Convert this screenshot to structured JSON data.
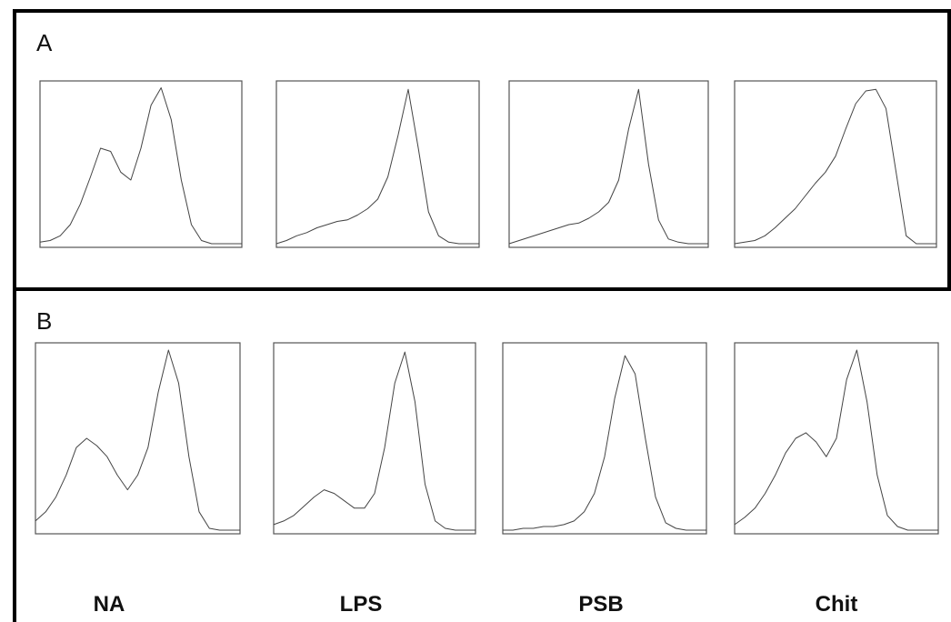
{
  "figure": {
    "panels": [
      {
        "id": "A",
        "letter": "A"
      },
      {
        "id": "B",
        "letter": "B"
      }
    ],
    "conditions": [
      "NA",
      "LPS",
      "PSB",
      "Chit"
    ]
  },
  "chart_data": [
    {
      "type": "line",
      "panel": "A",
      "condition": "NA",
      "x": [
        0,
        0.05,
        0.1,
        0.15,
        0.2,
        0.25,
        0.3,
        0.35,
        0.4,
        0.45,
        0.5,
        0.55,
        0.6,
        0.65,
        0.7,
        0.75,
        0.8,
        0.85,
        0.9,
        0.95,
        1
      ],
      "y": [
        0.01,
        0.02,
        0.05,
        0.12,
        0.25,
        0.42,
        0.6,
        0.58,
        0.45,
        0.4,
        0.6,
        0.87,
        0.98,
        0.78,
        0.4,
        0.12,
        0.02,
        0,
        0,
        0,
        0
      ]
    },
    {
      "type": "line",
      "panel": "A",
      "condition": "LPS",
      "x": [
        0,
        0.05,
        0.1,
        0.15,
        0.2,
        0.25,
        0.3,
        0.35,
        0.4,
        0.45,
        0.5,
        0.55,
        0.6,
        0.65,
        0.7,
        0.75,
        0.8,
        0.85,
        0.9,
        0.95,
        1
      ],
      "y": [
        0.0,
        0.02,
        0.05,
        0.07,
        0.1,
        0.12,
        0.14,
        0.15,
        0.18,
        0.22,
        0.28,
        0.42,
        0.68,
        0.97,
        0.6,
        0.2,
        0.05,
        0.01,
        0,
        0,
        0
      ]
    },
    {
      "type": "line",
      "panel": "A",
      "condition": "PSB",
      "x": [
        0,
        0.05,
        0.1,
        0.15,
        0.2,
        0.25,
        0.3,
        0.35,
        0.4,
        0.45,
        0.5,
        0.55,
        0.6,
        0.65,
        0.7,
        0.75,
        0.8,
        0.85,
        0.9,
        0.95,
        1
      ],
      "y": [
        0.0,
        0.02,
        0.04,
        0.06,
        0.08,
        0.1,
        0.12,
        0.13,
        0.16,
        0.2,
        0.26,
        0.4,
        0.72,
        0.97,
        0.5,
        0.15,
        0.03,
        0.01,
        0,
        0,
        0
      ]
    },
    {
      "type": "line",
      "panel": "A",
      "condition": "Chit",
      "x": [
        0,
        0.05,
        0.1,
        0.15,
        0.2,
        0.25,
        0.3,
        0.35,
        0.4,
        0.45,
        0.5,
        0.55,
        0.6,
        0.65,
        0.7,
        0.75,
        0.8,
        0.85,
        0.9,
        0.95,
        1
      ],
      "y": [
        0.0,
        0.01,
        0.02,
        0.05,
        0.1,
        0.16,
        0.22,
        0.3,
        0.38,
        0.45,
        0.55,
        0.72,
        0.88,
        0.96,
        0.97,
        0.85,
        0.45,
        0.05,
        0,
        0,
        0
      ]
    },
    {
      "type": "line",
      "panel": "B",
      "condition": "NA",
      "x": [
        0,
        0.05,
        0.1,
        0.15,
        0.2,
        0.25,
        0.3,
        0.35,
        0.4,
        0.45,
        0.5,
        0.55,
        0.6,
        0.65,
        0.7,
        0.75,
        0.8,
        0.85,
        0.9,
        0.95,
        1
      ],
      "y": [
        0.05,
        0.1,
        0.18,
        0.3,
        0.45,
        0.5,
        0.46,
        0.4,
        0.3,
        0.22,
        0.3,
        0.45,
        0.75,
        0.98,
        0.8,
        0.4,
        0.1,
        0.01,
        0,
        0,
        0
      ]
    },
    {
      "type": "line",
      "panel": "B",
      "condition": "LPS",
      "x": [
        0,
        0.05,
        0.1,
        0.15,
        0.2,
        0.25,
        0.3,
        0.35,
        0.4,
        0.45,
        0.5,
        0.55,
        0.6,
        0.65,
        0.7,
        0.75,
        0.8,
        0.85,
        0.9,
        0.95,
        1
      ],
      "y": [
        0.03,
        0.05,
        0.08,
        0.13,
        0.18,
        0.22,
        0.2,
        0.16,
        0.12,
        0.12,
        0.2,
        0.45,
        0.8,
        0.97,
        0.7,
        0.25,
        0.05,
        0.01,
        0,
        0,
        0
      ]
    },
    {
      "type": "line",
      "panel": "B",
      "condition": "PSB",
      "x": [
        0,
        0.05,
        0.1,
        0.15,
        0.2,
        0.25,
        0.3,
        0.35,
        0.4,
        0.45,
        0.5,
        0.55,
        0.6,
        0.65,
        0.7,
        0.75,
        0.8,
        0.85,
        0.9,
        0.95,
        1
      ],
      "y": [
        0.0,
        0.0,
        0.01,
        0.01,
        0.02,
        0.02,
        0.03,
        0.05,
        0.1,
        0.2,
        0.4,
        0.72,
        0.95,
        0.85,
        0.5,
        0.18,
        0.04,
        0.01,
        0,
        0,
        0
      ]
    },
    {
      "type": "line",
      "panel": "B",
      "condition": "Chit",
      "x": [
        0,
        0.05,
        0.1,
        0.15,
        0.2,
        0.25,
        0.3,
        0.35,
        0.4,
        0.45,
        0.5,
        0.55,
        0.6,
        0.65,
        0.7,
        0.75,
        0.8,
        0.85,
        0.9,
        0.95,
        1
      ],
      "y": [
        0.03,
        0.07,
        0.12,
        0.2,
        0.3,
        0.42,
        0.5,
        0.53,
        0.48,
        0.4,
        0.5,
        0.82,
        0.98,
        0.7,
        0.3,
        0.08,
        0.02,
        0,
        0,
        0,
        0
      ]
    }
  ]
}
